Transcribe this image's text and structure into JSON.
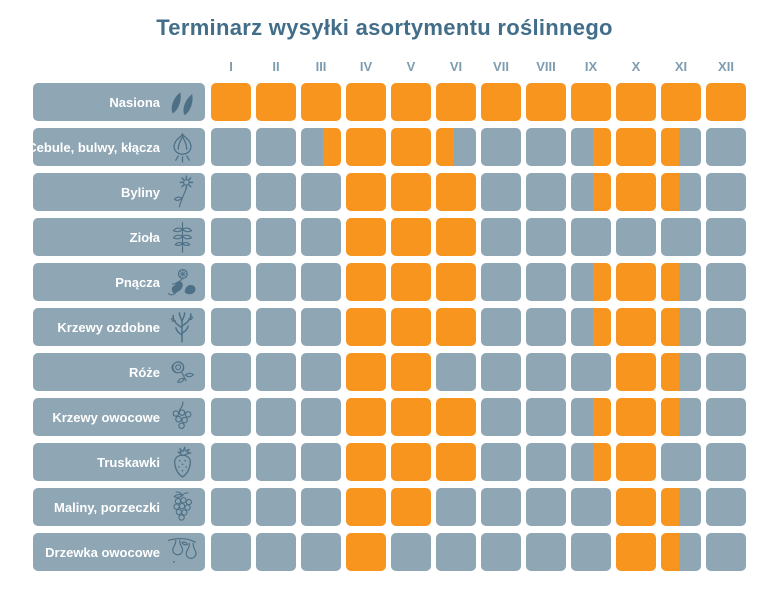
{
  "colors": {
    "active_cell": "#F7951F",
    "inactive_cell": "#8FA6B4",
    "title_text": "#436E8A",
    "month_label_text": "#7E9CB0",
    "row_label_text": "#FFFFFF",
    "icon_stroke": "#4E7086"
  },
  "chart_data": {
    "type": "heatmap",
    "title": "Terminarz wysyłki asortymentu roślinnego",
    "x": [
      "I",
      "II",
      "III",
      "IV",
      "V",
      "VI",
      "VII",
      "VIII",
      "IX",
      "X",
      "XI",
      "XII"
    ],
    "legend_position": "none",
    "cell_state_meaning": {
      "on": "wysyłka przez cały miesiąc (pełna pomarańczowa komórka)",
      "off": "brak wysyłki (szara komórka)",
      "second-half": "wysyłka od połowy miesiąca (prawa połowa pomarańczowa)",
      "first-half": "wysyłka do połowy miesiąca (lewa połowa pomarańczowa)"
    },
    "categories": [
      "Nasiona",
      "Cebule, bulwy, kłącza",
      "Byliny",
      "Zioła",
      "Pnącza",
      "Krzewy ozdobne",
      "Róże",
      "Krzewy owocowe",
      "Truskawki",
      "Maliny, porzeczki",
      "Drzewka owocowe"
    ],
    "rows": [
      {
        "label": "Nasiona",
        "icon": "seeds-icon",
        "cells": [
          "on",
          "on",
          "on",
          "on",
          "on",
          "on",
          "on",
          "on",
          "on",
          "on",
          "on",
          "on"
        ]
      },
      {
        "label": "Cebule, bulwy, kłącza",
        "icon": "bulb-icon",
        "cells": [
          "off",
          "off",
          "second-half",
          "on",
          "on",
          "first-half",
          "off",
          "off",
          "second-half",
          "on",
          "first-half",
          "off"
        ]
      },
      {
        "label": "Byliny",
        "icon": "perennial-flower-icon",
        "cells": [
          "off",
          "off",
          "off",
          "on",
          "on",
          "on",
          "off",
          "off",
          "second-half",
          "on",
          "first-half",
          "off"
        ]
      },
      {
        "label": "Zioła",
        "icon": "herb-icon",
        "cells": [
          "off",
          "off",
          "off",
          "on",
          "on",
          "on",
          "off",
          "off",
          "off",
          "off",
          "off",
          "off"
        ]
      },
      {
        "label": "Pnącza",
        "icon": "vine-icon",
        "cells": [
          "off",
          "off",
          "off",
          "on",
          "on",
          "on",
          "off",
          "off",
          "second-half",
          "on",
          "first-half",
          "off"
        ]
      },
      {
        "label": "Krzewy ozdobne",
        "icon": "shrub-icon",
        "cells": [
          "off",
          "off",
          "off",
          "on",
          "on",
          "on",
          "off",
          "off",
          "second-half",
          "on",
          "first-half",
          "off"
        ]
      },
      {
        "label": "Róże",
        "icon": "rose-icon",
        "cells": [
          "off",
          "off",
          "off",
          "on",
          "on",
          "off",
          "off",
          "off",
          "off",
          "on",
          "first-half",
          "off"
        ]
      },
      {
        "label": "Krzewy owocowe",
        "icon": "berry-cluster-icon",
        "cells": [
          "off",
          "off",
          "off",
          "on",
          "on",
          "on",
          "off",
          "off",
          "second-half",
          "on",
          "first-half",
          "off"
        ]
      },
      {
        "label": "Truskawki",
        "icon": "strawberry-icon",
        "cells": [
          "off",
          "off",
          "off",
          "on",
          "on",
          "on",
          "off",
          "off",
          "second-half",
          "on",
          "off",
          "off"
        ]
      },
      {
        "label": "Maliny, porzeczki",
        "icon": "raspberry-icon",
        "cells": [
          "off",
          "off",
          "off",
          "on",
          "on",
          "off",
          "off",
          "off",
          "off",
          "on",
          "first-half",
          "off"
        ]
      },
      {
        "label": "Drzewka owocowe",
        "icon": "fruit-tree-icon",
        "cells": [
          "off",
          "off",
          "off",
          "on",
          "off",
          "off",
          "off",
          "off",
          "off",
          "on",
          "first-half",
          "off"
        ]
      }
    ]
  }
}
